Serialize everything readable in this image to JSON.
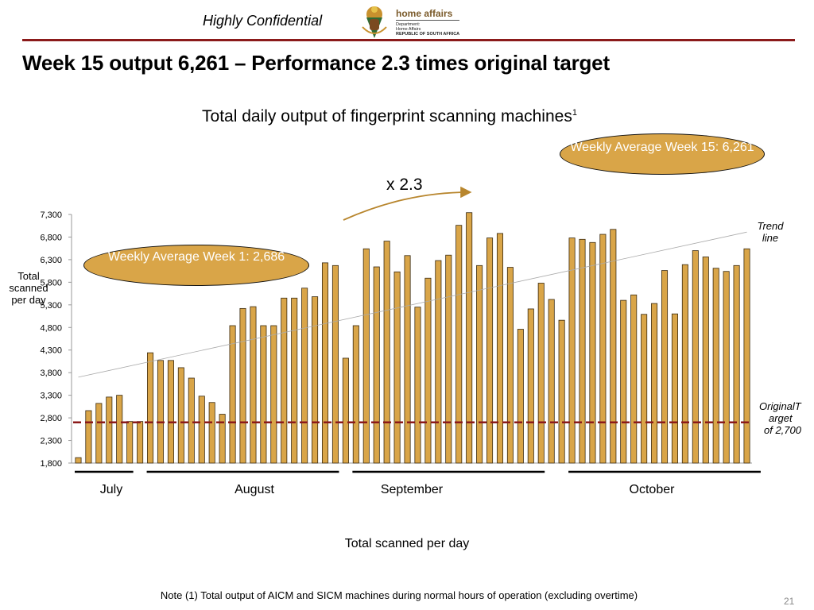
{
  "header": {
    "confidential": "Highly Confidential",
    "logo": {
      "name": "home affairs",
      "line2": "Department:",
      "line3": "Home Affairs",
      "line4": "REPUBLIC OF SOUTH AFRICA"
    }
  },
  "slide": {
    "title": "Week 15 output 6,261 – Performance 2.3 times original target",
    "subtitle": "Total daily output of fingerprint scanning machines",
    "subtitle_sup": "1",
    "note": "Note (1) Total output of AICM and SICM machines during normal hours of operation (excluding overtime)",
    "page_number": "21"
  },
  "annotations": {
    "oval_week1": "Weekly Average Week 1: 2,686",
    "oval_week15": "Weekly Average Week 15:    6,261",
    "multiplier": "x 2.3",
    "trend_label": "Trend line",
    "target_label": [
      "OriginalT",
      "arget",
      "of 2,700"
    ],
    "ylabel": "Total scanned per day"
  },
  "colors": {
    "bar_fill": "#d9a548",
    "bar_stroke": "#3a2a10",
    "target_line": "#8b1a1a",
    "header_rule": "#8b1a1a",
    "oval_fill": "#d9a548",
    "arrow": "#b8862e"
  },
  "chart_data": {
    "type": "bar",
    "title": "Total daily output of fingerprint scanning machines",
    "xlabel": "Total scanned per day",
    "ylabel": "Total scanned per day",
    "ylim": [
      1800,
      7300
    ],
    "yticks": [
      "1,800",
      "2,300",
      "2,800",
      "3,300",
      "3,800",
      "4,300",
      "4,800",
      "5,300",
      "5,800",
      "6,300",
      "6,800",
      "7,300"
    ],
    "ytick_values": [
      1800,
      2300,
      2800,
      3300,
      3800,
      4300,
      4800,
      5300,
      5800,
      6300,
      6800,
      7300
    ],
    "grid": false,
    "months": [
      {
        "label": "July",
        "start": 0,
        "end": 5
      },
      {
        "label": "August",
        "start": 7,
        "end": 25
      },
      {
        "label": "September",
        "start": 27,
        "end": 45
      },
      {
        "label": "October",
        "start": 48,
        "end": 66
      }
    ],
    "values": [
      1920,
      2960,
      3120,
      3260,
      3300,
      2720,
      2720,
      4240,
      4070,
      4070,
      3910,
      3680,
      3280,
      3140,
      2880,
      4840,
      5220,
      5260,
      4840,
      4840,
      5450,
      5450,
      5670,
      5480,
      6230,
      6170,
      4120,
      4840,
      6540,
      6140,
      6710,
      6030,
      6390,
      5250,
      5890,
      6280,
      6400,
      7060,
      7340,
      6170,
      6780,
      6880,
      6130,
      4760,
      5210,
      5780,
      5420,
      4960,
      6780,
      6750,
      6680,
      6860,
      6970,
      5400,
      5520,
      5090,
      5330,
      6060,
      5100,
      6190,
      6500,
      6360,
      6110,
      6040,
      6170,
      6540
    ],
    "target": 2700,
    "trend": {
      "start": 3700,
      "end": 6910
    }
  }
}
